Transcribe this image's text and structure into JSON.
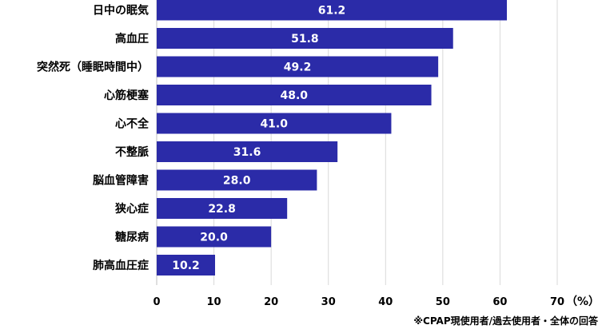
{
  "chart_data": {
    "type": "bar",
    "orientation": "horizontal",
    "categories": [
      "日中の眠気",
      "高血圧",
      "突然死（睡眠時間中）",
      "心筋梗塞",
      "心不全",
      "不整脈",
      "脳血管障害",
      "狭心症",
      "糖尿病",
      "肺高血圧症"
    ],
    "values": [
      61.2,
      51.8,
      49.2,
      48.0,
      41.0,
      31.6,
      28.0,
      22.8,
      20.0,
      10.2
    ],
    "value_labels": [
      "61.2",
      "51.8",
      "49.2",
      "48.0",
      "41.0",
      "31.6",
      "28.0",
      "22.8",
      "20.0",
      "10.2"
    ],
    "xticks": [
      0,
      10,
      20,
      30,
      40,
      50,
      60,
      70
    ],
    "xlim": [
      0,
      70
    ],
    "unit": "（%）",
    "note": "※CPAP現使用者/過去使用者・全体の回答",
    "grid": true,
    "bar_color": "#2b2ba8",
    "title": "",
    "xlabel": "",
    "ylabel": ""
  }
}
